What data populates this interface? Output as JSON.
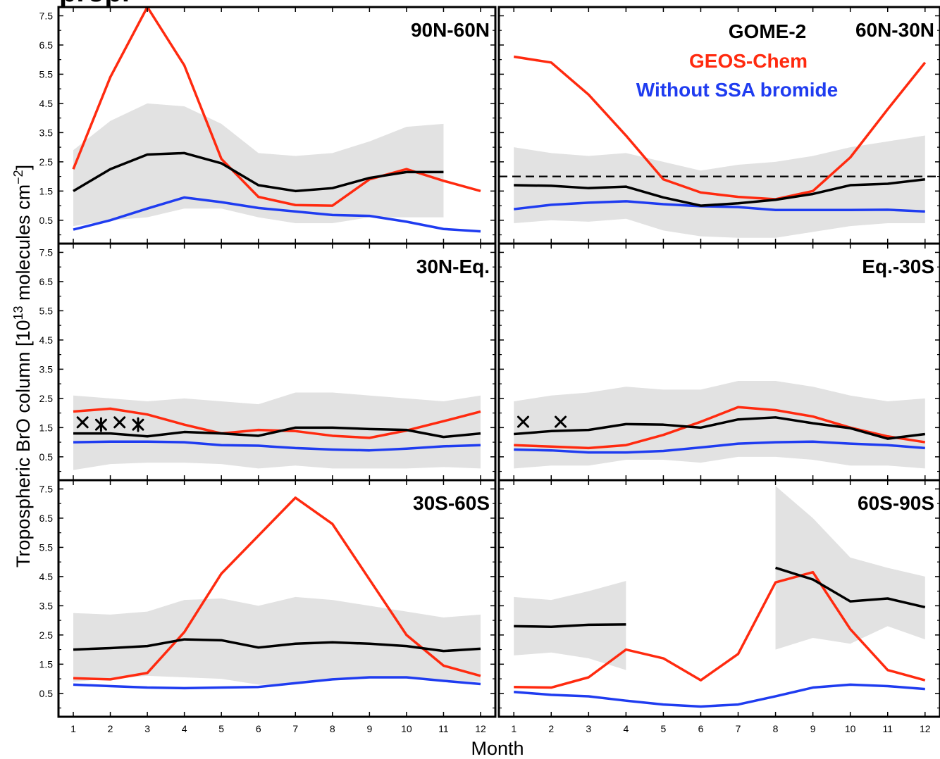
{
  "page_title_fragment": "propi",
  "chart_data": {
    "type": "line",
    "ylabel": "Tropospheric BrO column [10^13 molecules cm^-2]",
    "ylabel_parts": [
      "Tropospheric BrO column [10",
      "13",
      " molecules cm",
      "−2",
      "]"
    ],
    "xlabel": "Month",
    "x": [
      1,
      2,
      3,
      4,
      5,
      6,
      7,
      8,
      9,
      10,
      11,
      12
    ],
    "x_ticks": [
      "1",
      "2",
      "3",
      "4",
      "5",
      "6",
      "7",
      "8",
      "9",
      "10",
      "11",
      "12"
    ],
    "y_ticks": [
      "0.5",
      "1.5",
      "2.5",
      "3.5",
      "4.5",
      "5.5",
      "6.5",
      "7.5"
    ],
    "ylim": [
      -0.3,
      7.8
    ],
    "grid": false,
    "legend": {
      "placement": "top-right of 60N-30N panel",
      "entries": [
        {
          "label": "GOME-2",
          "color": "#000000"
        },
        {
          "label": "GEOS-Chem",
          "color": "#ff2a0f"
        },
        {
          "label": "Without SSA bromide",
          "color": "#1f3cf0"
        }
      ]
    },
    "colors": {
      "gome2": "#000000",
      "geoschem": "#ff2a0f",
      "nossa": "#1f3cf0",
      "band": "#e2e2e2"
    },
    "panels": [
      {
        "title": "90N-60N",
        "gome2": [
          1.5,
          2.25,
          2.75,
          2.8,
          2.45,
          1.7,
          1.5,
          1.6,
          1.95,
          2.15,
          2.15,
          null
        ],
        "geoschem": [
          2.25,
          5.4,
          7.8,
          5.8,
          2.6,
          1.3,
          1.02,
          1.0,
          1.9,
          2.25,
          1.85,
          1.5
        ],
        "nossa": [
          0.18,
          0.5,
          0.9,
          1.28,
          1.12,
          0.92,
          0.8,
          0.68,
          0.65,
          0.45,
          0.2,
          0.12
        ],
        "band_upper": [
          2.9,
          3.9,
          4.5,
          4.4,
          3.8,
          2.8,
          2.7,
          2.8,
          3.2,
          3.7,
          3.8,
          null
        ],
        "band_lower": [
          0.3,
          0.5,
          0.6,
          0.9,
          0.9,
          0.6,
          0.4,
          0.4,
          0.6,
          0.6,
          0.6,
          null
        ]
      },
      {
        "title": "60N-30N",
        "gome2": [
          1.7,
          1.68,
          1.6,
          1.65,
          1.28,
          1.0,
          1.08,
          1.2,
          1.4,
          1.7,
          1.75,
          1.9
        ],
        "geoschem": [
          6.1,
          5.9,
          4.8,
          3.4,
          1.9,
          1.45,
          1.3,
          1.22,
          1.5,
          2.65,
          4.3,
          5.9
        ],
        "nossa": [
          0.88,
          1.03,
          1.1,
          1.15,
          1.05,
          0.98,
          0.95,
          0.85,
          0.85,
          0.85,
          0.86,
          0.8
        ],
        "band_upper": [
          3.0,
          2.8,
          2.7,
          2.8,
          2.5,
          2.2,
          2.4,
          2.5,
          2.7,
          3.0,
          3.2,
          3.4
        ],
        "band_lower": [
          0.4,
          0.5,
          0.45,
          0.55,
          0.15,
          -0.05,
          -0.1,
          -0.1,
          0.1,
          0.3,
          0.4,
          0.4
        ],
        "reference_line": 2.0
      },
      {
        "title": "30N-Eq.",
        "gome2": [
          1.3,
          1.3,
          1.2,
          1.35,
          1.3,
          1.22,
          1.5,
          1.5,
          1.45,
          1.42,
          1.18,
          1.3
        ],
        "geoschem": [
          2.05,
          2.15,
          1.95,
          1.6,
          1.3,
          1.42,
          1.38,
          1.22,
          1.15,
          1.4,
          1.72,
          2.05
        ],
        "nossa": [
          1.0,
          1.02,
          1.02,
          1.0,
          0.9,
          0.88,
          0.8,
          0.75,
          0.72,
          0.78,
          0.86,
          0.9
        ],
        "band_upper": [
          2.6,
          2.5,
          2.4,
          2.5,
          2.4,
          2.3,
          2.7,
          2.7,
          2.6,
          2.5,
          2.4,
          2.6
        ],
        "band_lower": [
          0.05,
          0.25,
          0.3,
          0.3,
          0.25,
          0.1,
          0.2,
          0.1,
          0.1,
          0.1,
          0.15,
          0.1
        ],
        "markers": [
          {
            "x": 1.25,
            "y": 1.68,
            "symbol": "x"
          },
          {
            "x": 1.75,
            "y": 1.6,
            "symbol": "asterisk"
          },
          {
            "x": 2.25,
            "y": 1.68,
            "symbol": "x"
          },
          {
            "x": 2.75,
            "y": 1.6,
            "symbol": "asterisk"
          }
        ]
      },
      {
        "title": "Eq.-30S",
        "gome2": [
          1.28,
          1.38,
          1.42,
          1.62,
          1.6,
          1.5,
          1.78,
          1.85,
          1.65,
          1.48,
          1.12,
          1.28
        ],
        "geoschem": [
          0.9,
          0.85,
          0.8,
          0.9,
          1.25,
          1.7,
          2.2,
          2.1,
          1.88,
          1.5,
          1.2,
          1.0
        ],
        "nossa": [
          0.75,
          0.72,
          0.65,
          0.65,
          0.7,
          0.82,
          0.95,
          1.0,
          1.02,
          0.95,
          0.9,
          0.8
        ],
        "band_upper": [
          2.4,
          2.6,
          2.7,
          2.9,
          2.8,
          2.8,
          3.1,
          3.1,
          2.9,
          2.6,
          2.4,
          2.5
        ],
        "band_lower": [
          0.1,
          0.2,
          0.2,
          0.4,
          0.4,
          0.3,
          0.5,
          0.5,
          0.4,
          0.2,
          0.2,
          0.1
        ],
        "markers": [
          {
            "x": 1.25,
            "y": 1.7,
            "symbol": "x"
          },
          {
            "x": 2.25,
            "y": 1.7,
            "symbol": "x"
          }
        ]
      },
      {
        "title": "30S-60S",
        "gome2": [
          2.0,
          2.05,
          2.12,
          2.35,
          2.32,
          2.07,
          2.2,
          2.25,
          2.2,
          2.12,
          1.95,
          2.03
        ],
        "geoschem": [
          1.02,
          0.98,
          1.2,
          2.6,
          4.6,
          5.9,
          7.2,
          6.3,
          4.4,
          2.5,
          1.45,
          1.1
        ],
        "nossa": [
          0.8,
          0.75,
          0.7,
          0.68,
          0.7,
          0.72,
          0.85,
          0.98,
          1.05,
          1.05,
          0.93,
          0.82
        ],
        "band_upper": [
          3.25,
          3.2,
          3.3,
          3.7,
          3.75,
          3.5,
          3.8,
          3.7,
          3.5,
          3.3,
          3.1,
          3.2
        ],
        "band_lower": [
          0.9,
          1.0,
          1.1,
          1.05,
          1.0,
          0.8,
          0.8,
          0.95,
          1.0,
          1.0,
          0.95,
          0.9
        ]
      },
      {
        "title": "60S-90S",
        "gome2": [
          2.8,
          2.78,
          2.85,
          2.86,
          null,
          null,
          null,
          4.8,
          4.4,
          3.65,
          3.75,
          3.45
        ],
        "geoschem": [
          0.72,
          0.7,
          1.05,
          2.0,
          1.7,
          0.95,
          1.85,
          4.3,
          4.65,
          2.7,
          1.3,
          0.95
        ],
        "nossa": [
          0.55,
          0.45,
          0.4,
          0.25,
          0.12,
          0.05,
          0.12,
          0.4,
          0.7,
          0.8,
          0.75,
          0.65
        ],
        "band_upper": [
          3.8,
          3.7,
          4.0,
          4.35,
          null,
          null,
          null,
          7.6,
          6.5,
          5.15,
          4.8,
          4.5
        ],
        "band_lower": [
          1.8,
          1.9,
          1.7,
          1.3,
          null,
          null,
          null,
          2.0,
          2.4,
          2.2,
          2.8,
          2.35
        ]
      }
    ]
  }
}
